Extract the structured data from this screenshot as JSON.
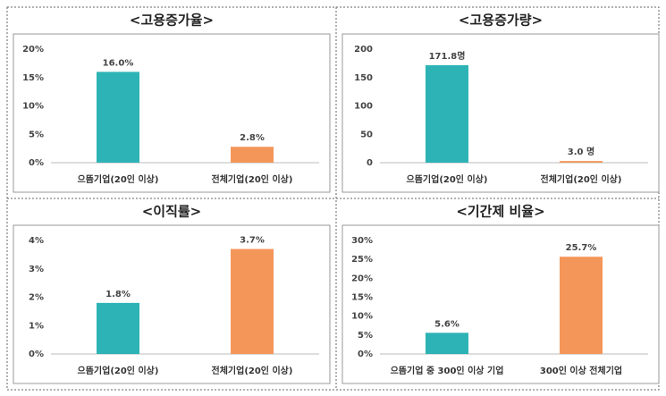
{
  "chart_data": [
    {
      "type": "bar",
      "title": "<고용증가율>",
      "categories": [
        "으뜸기업(20인 이상)",
        "전체기업(20인 이상)"
      ],
      "values": [
        16.0,
        2.8
      ],
      "value_labels": [
        "16.0%",
        "2.8%"
      ],
      "colors": [
        "#2db3b5",
        "#f4965a"
      ],
      "ylim": [
        0,
        20
      ],
      "yticks": [
        {
          "value": 0,
          "label": "0%"
        },
        {
          "value": 5,
          "label": "5%"
        },
        {
          "value": 10,
          "label": "10%"
        },
        {
          "value": 15,
          "label": "15%"
        },
        {
          "value": 20,
          "label": "20%"
        }
      ]
    },
    {
      "type": "bar",
      "title": "<고용증가량>",
      "categories": [
        "으뜸기업(20인 이상)",
        "전체기업(20인 이상)"
      ],
      "values": [
        171.8,
        3.0
      ],
      "value_labels": [
        "171.8명",
        "3.0 명"
      ],
      "colors": [
        "#2db3b5",
        "#f4965a"
      ],
      "ylim": [
        0,
        200
      ],
      "yticks": [
        0,
        50,
        100,
        150,
        200
      ]
    },
    {
      "type": "bar",
      "title": "<이직률>",
      "categories": [
        "으뜸기업(20인 이상)",
        "전체기업(20인 이상)"
      ],
      "values": [
        1.8,
        3.7
      ],
      "value_labels": [
        "1.8%",
        "3.7%"
      ],
      "colors": [
        "#2db3b5",
        "#f4965a"
      ],
      "ylim": [
        0,
        4
      ],
      "yticks": [
        {
          "value": 0,
          "label": "0%"
        },
        {
          "value": 1,
          "label": "1%"
        },
        {
          "value": 2,
          "label": "2%"
        },
        {
          "value": 3,
          "label": "3%"
        },
        {
          "value": 4,
          "label": "4%"
        }
      ]
    },
    {
      "type": "bar",
      "title": "<기간제 비율>",
      "categories": [
        "으뜸기업 중 300인 이상 기업",
        "300인 이상 전체기업"
      ],
      "values": [
        5.6,
        25.7
      ],
      "value_labels": [
        "5.6%",
        "25.7%"
      ],
      "colors": [
        "#2db3b5",
        "#f4965a"
      ],
      "ylim": [
        0,
        30
      ],
      "yticks": [
        {
          "value": 0,
          "label": "0%"
        },
        {
          "value": 5,
          "label": "5%"
        },
        {
          "value": 10,
          "label": "10%"
        },
        {
          "value": 15,
          "label": "15%"
        },
        {
          "value": 20,
          "label": "20%"
        },
        {
          "value": 25,
          "label": "25%"
        },
        {
          "value": 30,
          "label": "30%"
        }
      ]
    }
  ]
}
